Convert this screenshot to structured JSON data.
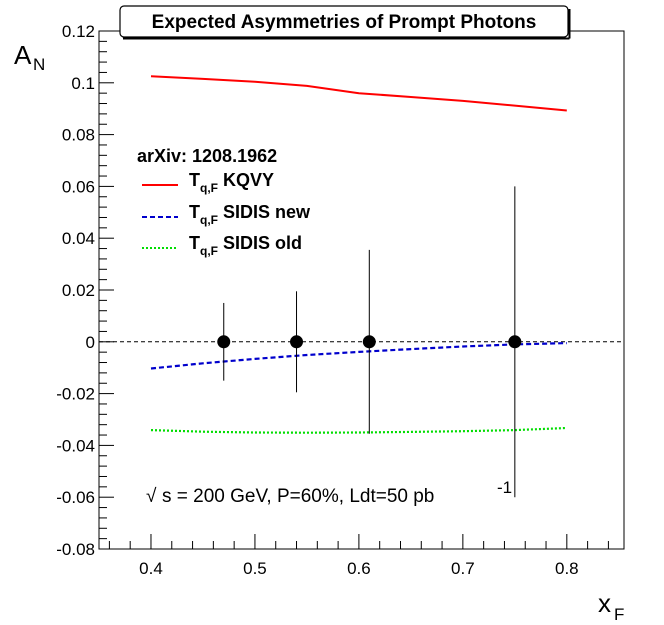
{
  "chart_data": {
    "type": "line",
    "title": "Expected Asymmetries of Prompt Photons",
    "xlabel": {
      "main": "x",
      "sub": "F"
    },
    "ylabel": {
      "main": "A",
      "sub": "N"
    },
    "xlim": [
      0.35,
      0.855
    ],
    "ylim": [
      -0.08,
      0.12
    ],
    "xticks": [
      0.4,
      0.5,
      0.6,
      0.7,
      0.8
    ],
    "xtick_labels": [
      "0.4",
      "0.5",
      "0.6",
      "0.7",
      "0.8"
    ],
    "yticks": [
      -0.08,
      -0.06,
      -0.04,
      -0.02,
      0,
      0.02,
      0.04,
      0.06,
      0.08,
      0.1,
      0.12
    ],
    "ytick_labels": [
      "-0.08",
      "-0.06",
      "-0.04",
      "-0.02",
      "0",
      "0.02",
      "0.04",
      "0.06",
      "0.08",
      "0.1",
      "0.12"
    ],
    "legend_header": "arXiv: 1208.1962",
    "series": [
      {
        "name": "KQVY",
        "label_main": "T",
        "label_sub": "q,F",
        "label_rest": " KQVY",
        "color": "#ff0000",
        "style": "solid",
        "x": [
          0.4,
          0.45,
          0.5,
          0.55,
          0.6,
          0.65,
          0.7,
          0.75,
          0.8
        ],
        "y": [
          0.1025,
          0.1015,
          0.1004,
          0.0988,
          0.096,
          0.0945,
          0.093,
          0.0912,
          0.0893
        ]
      },
      {
        "name": "SIDIS new",
        "label_main": "T",
        "label_sub": "q,F",
        "label_rest": " SIDIS new",
        "color": "#0000cc",
        "style": "dashed",
        "x": [
          0.4,
          0.45,
          0.5,
          0.55,
          0.6,
          0.65,
          0.7,
          0.75,
          0.8
        ],
        "y": [
          -0.0103,
          -0.0083,
          -0.0066,
          -0.0051,
          -0.0039,
          -0.0028,
          -0.0018,
          -0.001,
          -0.0005
        ]
      },
      {
        "name": "SIDIS old",
        "label_main": "T",
        "label_sub": "q,F",
        "label_rest": " SIDIS old",
        "color": "#00dd00",
        "style": "dotted",
        "x": [
          0.4,
          0.45,
          0.5,
          0.55,
          0.6,
          0.65,
          0.7,
          0.75,
          0.8
        ],
        "y": [
          -0.0341,
          -0.0347,
          -0.035,
          -0.0351,
          -0.035,
          -0.0348,
          -0.0345,
          -0.0341,
          -0.0333
        ]
      }
    ],
    "points": {
      "x": [
        0.47,
        0.54,
        0.61,
        0.75
      ],
      "y": [
        0,
        0,
        0,
        0
      ],
      "yerr": [
        0.015,
        0.0195,
        0.0355,
        0.06
      ],
      "color": "#000000"
    },
    "zero_line": {
      "y": 0,
      "style": "dashed"
    },
    "annotation": {
      "sqrt": "√",
      "text": "s = 200 GeV, P=60%, Ldt=50 pb",
      "sup": "-1"
    }
  }
}
